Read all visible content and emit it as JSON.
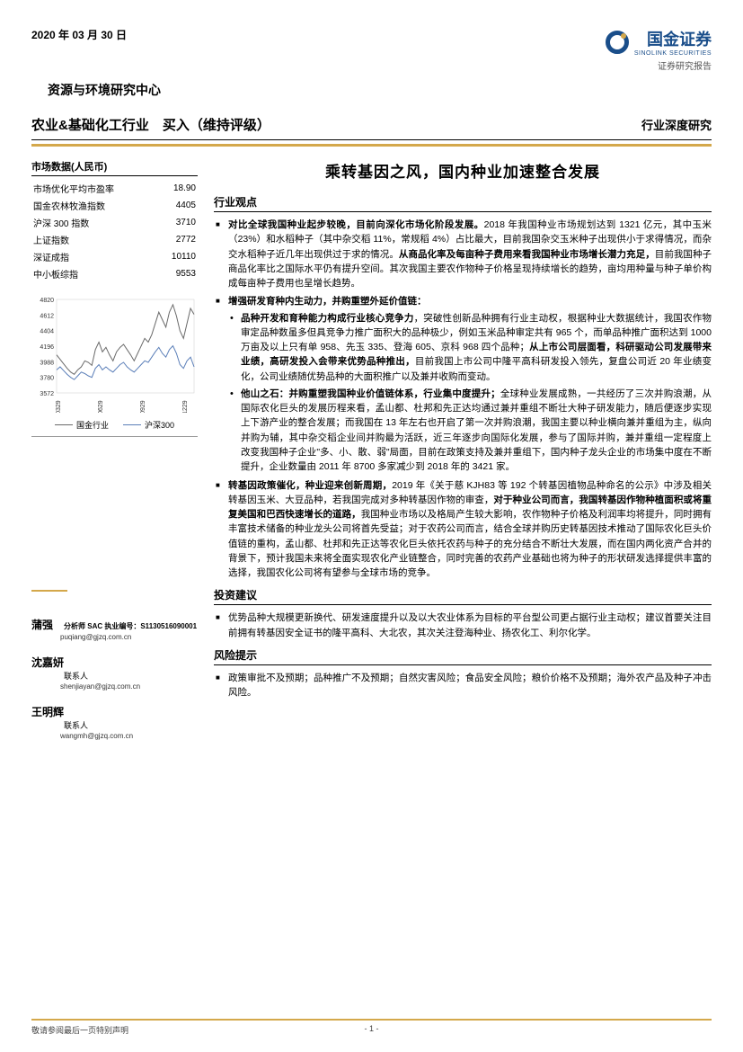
{
  "header": {
    "date": "2020 年 03 月 30 日",
    "company_cn": "国金证券",
    "company_en": "SINOLINK SECURITIES",
    "report_label": "证券研究报告",
    "department": "资源与环境研究中心"
  },
  "title_bar": {
    "left": "农业&基础化工行业　买入（维持评级）",
    "right": "行业深度研究"
  },
  "market_data": {
    "header": "市场数据(人民币)",
    "rows": [
      {
        "label": "市场优化平均市盈率",
        "value": "18.90"
      },
      {
        "label": "国金农林牧渔指数",
        "value": "4405"
      },
      {
        "label": "沪深 300 指数",
        "value": "3710"
      },
      {
        "label": "上证指数",
        "value": "2772"
      },
      {
        "label": "深证成指",
        "value": "10110"
      },
      {
        "label": "中小板综指",
        "value": "9553"
      }
    ]
  },
  "chart": {
    "y_ticks": [
      "4820",
      "4612",
      "4404",
      "4196",
      "3988",
      "3780",
      "3572"
    ],
    "y_min": 3572,
    "y_max": 4820,
    "x_ticks": [
      "190329",
      "190629",
      "190929",
      "191229"
    ],
    "series": [
      {
        "name": "国金行业",
        "color": "#6a6a6a",
        "points": [
          4080,
          4020,
          3960,
          3900,
          3850,
          3820,
          3880,
          3920,
          4000,
          3980,
          3940,
          4150,
          4250,
          4120,
          4180,
          4080,
          4000,
          4120,
          4180,
          4220,
          4150,
          4080,
          4000,
          4100,
          4200,
          4300,
          4250,
          4350,
          4500,
          4650,
          4550,
          4450,
          4650,
          4750,
          4600,
          4400,
          4300,
          4500,
          4700,
          4620
        ]
      },
      {
        "name": "沪深300",
        "color": "#5a7eb8",
        "points": [
          3880,
          3920,
          3870,
          3820,
          3780,
          3750,
          3800,
          3850,
          3830,
          3800,
          3780,
          3900,
          3950,
          3880,
          3920,
          3880,
          3850,
          3900,
          3950,
          3980,
          3920,
          3880,
          3850,
          3900,
          3950,
          4000,
          3980,
          4050,
          4120,
          4180,
          4100,
          4050,
          4150,
          4200,
          4100,
          3950,
          3900,
          4000,
          4050,
          3920
        ]
      }
    ],
    "legend": [
      {
        "label": "国金行业",
        "color": "#6a6a6a"
      },
      {
        "label": "沪深300",
        "color": "#5a7eb8"
      }
    ]
  },
  "analysts": [
    {
      "name": "蒲强",
      "cert_label": "分析师 SAC 执业编号：",
      "cert": "S1130516090001",
      "email": "puqiang@gjzq.com.cn"
    },
    {
      "name": "沈嘉妍",
      "role": "联系人",
      "email": "shenjiayan@gjzq.com.cn"
    },
    {
      "name": "王明辉",
      "role": "联系人",
      "email": "wangmh@gjzq.com.cn"
    }
  ],
  "main": {
    "title": "乘转基因之风，国内种业加速整合发展",
    "sections": [
      {
        "header": "行业观点",
        "bullets": [
          {
            "html": "<span class='bold'>对比全球我国种业起步较晚，目前向深化市场化阶段发展。</span>2018 年我国种业市场规划达到 1321 亿元，其中玉米（23%）和水稻种子（其中杂交稻 11%，常规稻 4%）占比最大，目前我国杂交玉米种子出现供小于求得情况，而杂交水稻种子近几年出现供过于求的情况。<span class='bold'>从商品化率及每亩种子费用来看我国种业市场增长潜力充足，</span>目前我国种子商品化率比之国际水平仍有提升空间。其次我国主要农作物种子价格呈现持续增长的趋势，亩均用种量与种子单价构成每亩种子费用也呈增长趋势。"
          },
          {
            "html": "<span class='bold'>增强研发育种内生动力，并购重塑外延价值链：</span>",
            "sub": [
              {
                "html": "<span class='bold'>品种开发和育种能力构成行业核心竞争力</span>，突破性创新品种拥有行业主动权，根据种业大数据统计，我国农作物审定品种数虽多但具竞争力推广面积大的品种极少，例如玉米品种审定共有 965 个，而单品种推广面积达到 1000 万亩及以上只有单 958、先玉 335、登海 605、京科 968 四个品种；<span class='bold'>从上市公司层面看，科研驱动公司发展带来业绩，高研发投入会带来优势品种推出，</span>目前我国上市公司中隆平高科研发投入领先，复盘公司近 20 年业绩变化，公司业绩随优势品种的大面积推广以及兼并收购而变动。"
              },
              {
                "html": "<span class='bold'>他山之石：并购重塑我国种业价值链体系，行业集中度提升；</span>全球种业发展成熟，一共经历了三次并购浪潮，从国际农化巨头的发展历程来看，孟山都、杜邦和先正达均通过兼并重组不断壮大种子研发能力，随后便逐步实现上下游产业的整合发展；而我国在 13 年左右也开启了第一次并购浪潮，我国主要以种业横向兼并重组为主，纵向并购为辅，其中杂交稻企业间并购最为活跃，近三年逐步向国际化发展，参与了国际并购，兼并重组一定程度上改变我国种子企业\"多、小、散、弱\"局面，目前在政策支持及兼并重组下，国内种子龙头企业的市场集中度在不断提升，企业数量由 2011 年 8700 多家减少到 2018 年的 3421 家。"
              }
            ]
          },
          {
            "html": "<span class='bold'>转基因政策催化，种业迎来创新周期，</span>2019 年《关于慈 KJH83 等 192 个转基因植物品种命名的公示》中涉及相关转基因玉米、大豆品种，若我国完成对多种转基因作物的审查，<span class='bold'>对于种业公司而言，我国转基因作物种植面积或将重复美国和巴西快速增长的道路，</span>我国种业市场以及格局产生较大影响，农作物种子价格及利润率均将提升，同时拥有丰富技术储备的种业龙头公司将首先受益；对于农药公司而言，结合全球并购历史转基因技术推动了国际农化巨头价值链的重构，孟山都、杜邦和先正达等农化巨头依托农药与种子的充分结合不断壮大发展，而在国内两化资产合并的背景下，预计我国未来将全面实现农化产业链整合，同时完善的农药产业基础也将为种子的形状研发选择提供丰富的选择，我国农化公司将有望参与全球市场的竞争。"
          }
        ]
      },
      {
        "header": "投资建议",
        "bullets": [
          {
            "html": "优势品种大规模更新换代、研发速度提升以及以大农业体系为目标的平台型公司更占据行业主动权；建议首要关注目前拥有转基因安全证书的隆平高科、大北农，其次关注登海种业、扬农化工、利尔化学。"
          }
        ]
      },
      {
        "header": "风险提示",
        "bullets": [
          {
            "html": "政策审批不及预期；品种推广不及预期；自然灾害风险；食品安全风险；粮价价格不及预期；海外农产品及种子冲击风险。"
          }
        ]
      }
    ]
  },
  "footer": {
    "disclaimer": "敬请参阅最后一页特别声明",
    "page": "- 1 -"
  },
  "colors": {
    "accent": "#d4a84b",
    "brand": "#1a4e8a"
  }
}
